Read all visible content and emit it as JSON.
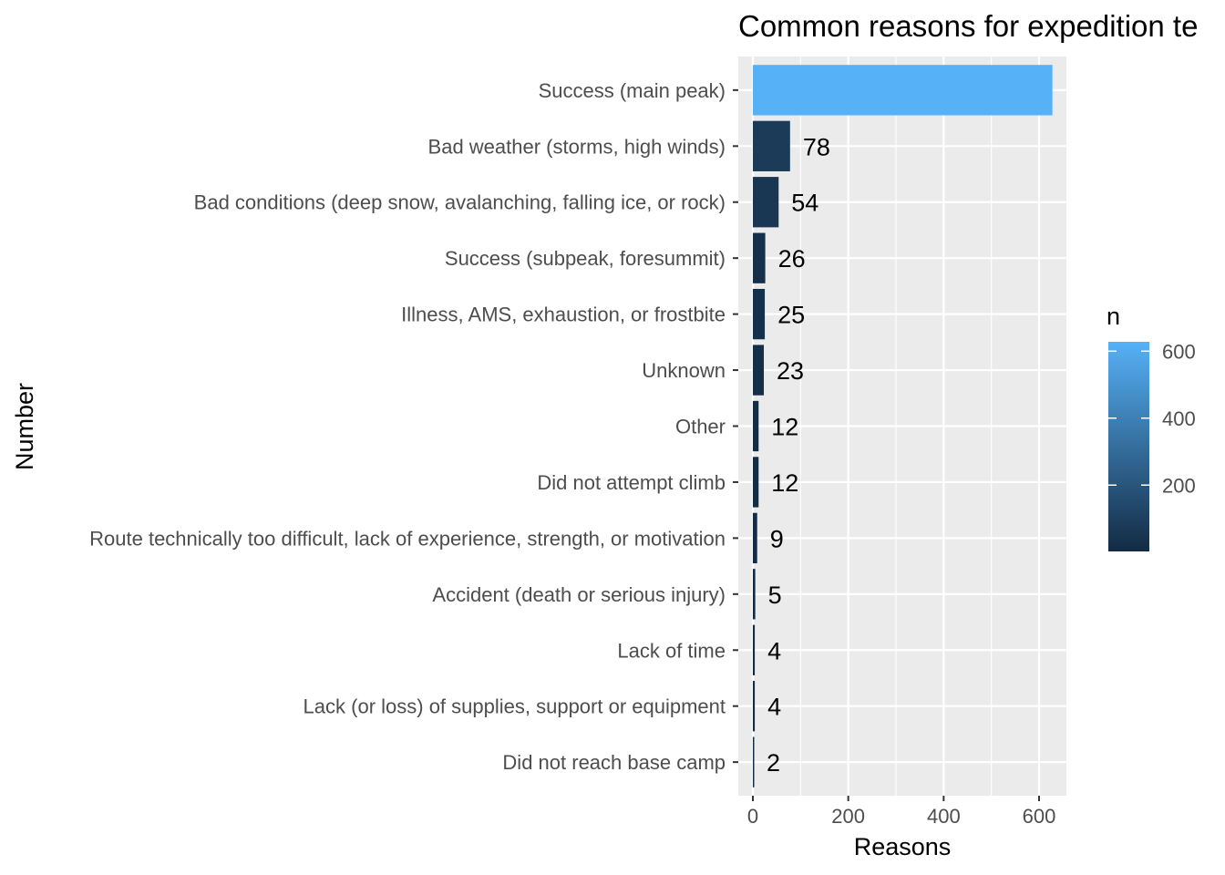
{
  "chart_data": {
    "type": "bar",
    "orientation": "horizontal",
    "title": "Common reasons for expedition te",
    "xlabel": "Reasons",
    "ylabel": "Number",
    "xlim": [
      0,
      650
    ],
    "xticks": [
      0,
      200,
      400,
      600
    ],
    "grid": true,
    "categories": [
      "Success (main peak)",
      "Bad weather (storms, high winds)",
      "Bad conditions (deep snow, avalanching, falling ice, or rock)",
      "Success (subpeak, foresummit)",
      "Illness, AMS, exhaustion, or frostbite",
      "Unknown",
      "Other",
      "Did not attempt climb",
      "Route technically too difficult, lack of experience, strength, or motivation",
      "Accident (death or serious injury)",
      "Lack of time",
      "Lack (or loss) of supplies, support or equipment",
      "Did not reach base camp"
    ],
    "values": [
      628,
      78,
      54,
      26,
      25,
      23,
      12,
      12,
      9,
      5,
      4,
      4,
      2
    ],
    "data_labels": [
      "",
      "78",
      "54",
      "26",
      "25",
      "23",
      "12",
      "12",
      "9",
      "5",
      "4",
      "4",
      "2"
    ],
    "legend": {
      "title": "n",
      "placement": "right",
      "ticks": [
        200,
        400,
        600
      ],
      "range": [
        2,
        628
      ],
      "color_low": "#132B43",
      "color_high": "#56B1F7"
    },
    "panel_background": "#EBEBEB",
    "grid_color": "#FFFFFF"
  }
}
